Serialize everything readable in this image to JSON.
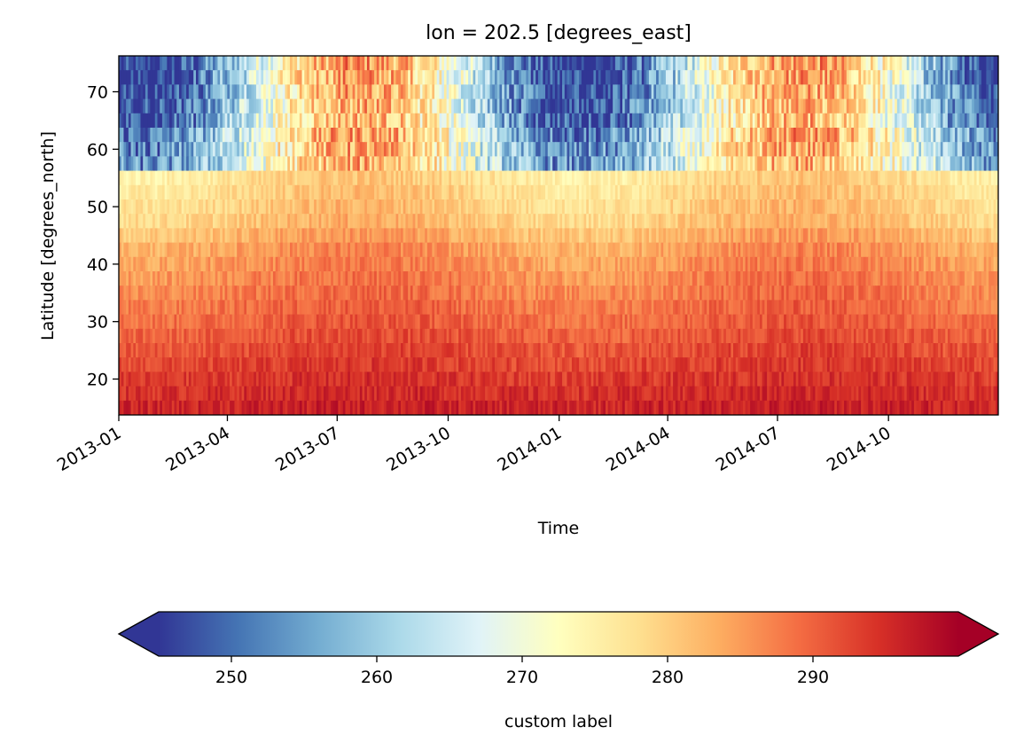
{
  "chart_data": {
    "type": "heatmap",
    "title": "lon = 202.5 [degrees_east]",
    "xlabel": "Time",
    "ylabel": "Latitude [degrees_north]",
    "x_range": [
      "2013-01-01",
      "2014-12-31"
    ],
    "x_ticks": [
      "2013-01",
      "2013-04",
      "2013-07",
      "2013-10",
      "2014-01",
      "2014-04",
      "2014-07",
      "2014-10"
    ],
    "y_range": [
      13.75,
      76.25
    ],
    "y_ticks": [
      20,
      30,
      40,
      50,
      60,
      70
    ],
    "latitudes": [
      75,
      72.5,
      70,
      67.5,
      65,
      62.5,
      60,
      57.5,
      55,
      52.5,
      50,
      47.5,
      45,
      42.5,
      40,
      37.5,
      35,
      32.5,
      30,
      27.5,
      25,
      22.5,
      20,
      17.5,
      15
    ],
    "approx_mean_value_by_latitude": [
      252,
      253,
      254,
      257,
      261,
      266,
      270,
      276,
      278,
      279,
      280,
      281,
      283,
      285,
      286,
      287,
      288,
      289,
      290,
      291,
      292,
      293,
      294,
      295,
      296
    ],
    "approx_value_range": [
      245,
      300
    ],
    "seasonal_pattern": "values at high latitudes (above 57.5 N) drop to about 245-255 in winter months (Jan-Apr, Nov-Dec) and rise to about 280-290 in summer (Jun-Sep); low latitudes stay about 290-297 year-round",
    "colormap": "RdYlBu_r",
    "colorbar": {
      "label": "custom label",
      "orientation": "horizontal",
      "extend": "both",
      "vmin": 245,
      "vmax": 300,
      "ticks": [
        250,
        260,
        270,
        280,
        290
      ],
      "colors": [
        "#313695",
        "#4575b4",
        "#74add1",
        "#abd9e9",
        "#e0f3f8",
        "#ffffbf",
        "#fee090",
        "#fdae61",
        "#f46d43",
        "#d73027",
        "#a50026"
      ]
    }
  }
}
